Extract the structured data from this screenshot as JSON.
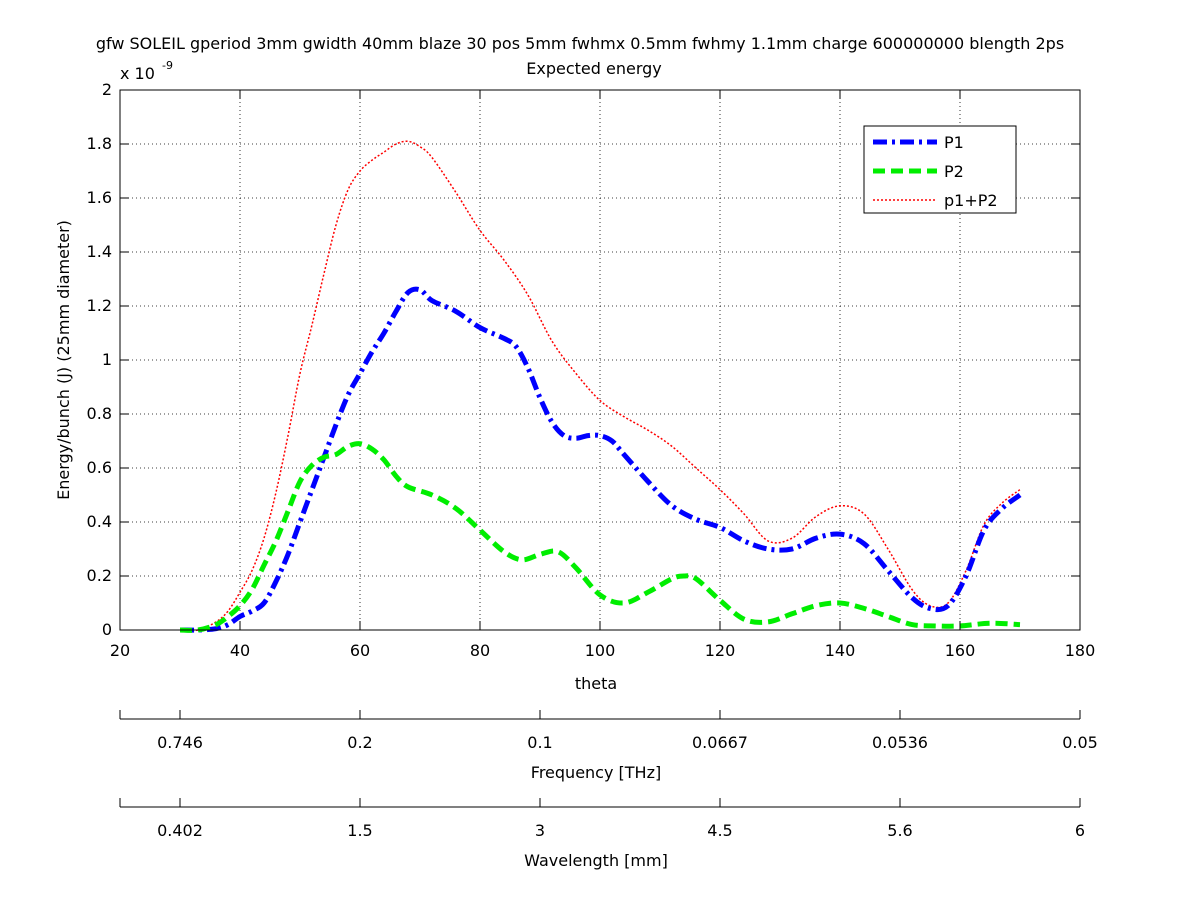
{
  "chart_data": {
    "type": "line",
    "title_line1": "gfw SOLEIL gperiod 3mm gwidth 40mm blaze 30 pos 5mm fwhmx 0.5mm fwhmy 1.1mm charge 600000000 blength 2ps",
    "title_line2": "Expected energy",
    "xlabel": "theta",
    "ylabel": "Energy/bunch (J) (25mm diameter)",
    "y_exponent_base": "x 10",
    "y_exponent_power": "-9",
    "xlim": [
      20,
      180
    ],
    "ylim": [
      0,
      2
    ],
    "grid": true,
    "legend_position": "top-right",
    "x_ticks": [
      "20",
      "40",
      "60",
      "80",
      "100",
      "120",
      "140",
      "160",
      "180"
    ],
    "y_ticks": [
      "0",
      "0.2",
      "0.4",
      "0.6",
      "0.8",
      "1",
      "1.2",
      "1.4",
      "1.6",
      "1.8",
      "2"
    ],
    "series": [
      {
        "name": "P1",
        "color": "#0000ff",
        "style": "dashdot",
        "x": [
          30,
          33,
          36,
          38,
          40,
          42,
          44,
          46,
          48,
          50,
          52,
          54,
          56,
          58,
          60,
          62,
          64,
          66,
          68,
          70,
          72,
          76,
          80,
          84,
          86,
          88,
          90,
          92,
          94,
          96,
          98,
          100,
          102,
          104,
          108,
          112,
          116,
          120,
          124,
          128,
          132,
          136,
          140,
          144,
          148,
          152,
          155,
          158,
          161,
          164,
          167,
          170
        ],
        "y": [
          0.0,
          0.0,
          0.005,
          0.02,
          0.05,
          0.07,
          0.1,
          0.18,
          0.28,
          0.4,
          0.52,
          0.64,
          0.76,
          0.87,
          0.95,
          1.03,
          1.1,
          1.18,
          1.25,
          1.26,
          1.22,
          1.18,
          1.12,
          1.08,
          1.05,
          0.97,
          0.86,
          0.77,
          0.72,
          0.71,
          0.72,
          0.72,
          0.7,
          0.65,
          0.55,
          0.46,
          0.41,
          0.38,
          0.33,
          0.3,
          0.3,
          0.34,
          0.355,
          0.32,
          0.22,
          0.12,
          0.08,
          0.09,
          0.2,
          0.37,
          0.45,
          0.5
        ]
      },
      {
        "name": "P2",
        "color": "#00ee00",
        "style": "dashed",
        "x": [
          30,
          33,
          36,
          38,
          40,
          42,
          44,
          46,
          48,
          50,
          52,
          54,
          56,
          58,
          60,
          62,
          64,
          66,
          68,
          72,
          76,
          80,
          84,
          87,
          90,
          93,
          96,
          100,
          104,
          108,
          112,
          114,
          116,
          120,
          124,
          128,
          132,
          136,
          140,
          144,
          148,
          152,
          156,
          160,
          165,
          170
        ],
        "y": [
          0.0,
          0.0,
          0.02,
          0.05,
          0.09,
          0.15,
          0.24,
          0.33,
          0.44,
          0.55,
          0.61,
          0.64,
          0.65,
          0.68,
          0.69,
          0.67,
          0.63,
          0.57,
          0.53,
          0.5,
          0.45,
          0.37,
          0.29,
          0.26,
          0.28,
          0.29,
          0.23,
          0.13,
          0.1,
          0.14,
          0.19,
          0.2,
          0.19,
          0.11,
          0.04,
          0.03,
          0.06,
          0.09,
          0.1,
          0.08,
          0.05,
          0.02,
          0.015,
          0.015,
          0.025,
          0.02
        ]
      },
      {
        "name": "p1+P2",
        "color": "#ff0000",
        "style": "dotted",
        "x": [
          30,
          33,
          36,
          38,
          40,
          42,
          44,
          46,
          48,
          50,
          52,
          54,
          56,
          58,
          60,
          62,
          64,
          66,
          68,
          70,
          72,
          76,
          80,
          84,
          88,
          92,
          96,
          100,
          104,
          108,
          112,
          116,
          120,
          124,
          128,
          132,
          136,
          140,
          144,
          148,
          152,
          155,
          158,
          161,
          164,
          167,
          170
        ],
        "y": [
          0.0,
          0.0,
          0.03,
          0.07,
          0.14,
          0.22,
          0.34,
          0.51,
          0.72,
          0.95,
          1.13,
          1.32,
          1.5,
          1.63,
          1.7,
          1.74,
          1.77,
          1.8,
          1.81,
          1.79,
          1.75,
          1.62,
          1.48,
          1.37,
          1.24,
          1.07,
          0.95,
          0.85,
          0.79,
          0.74,
          0.68,
          0.6,
          0.52,
          0.43,
          0.33,
          0.34,
          0.42,
          0.46,
          0.43,
          0.3,
          0.15,
          0.09,
          0.1,
          0.22,
          0.39,
          0.47,
          0.52
        ]
      }
    ],
    "secondary_axes": [
      {
        "label": "Frequency [THz]",
        "tick_labels": [
          "0.746",
          "0.2",
          "0.1",
          "0.0667",
          "0.0536",
          "0.05"
        ],
        "tick_theta": [
          30,
          60,
          90,
          120,
          150,
          180
        ]
      },
      {
        "label": "Wavelength [mm]",
        "tick_labels": [
          "0.402",
          "1.5",
          "3",
          "4.5",
          "5.6",
          "6"
        ],
        "tick_theta": [
          30,
          60,
          90,
          120,
          150,
          180
        ]
      }
    ]
  }
}
